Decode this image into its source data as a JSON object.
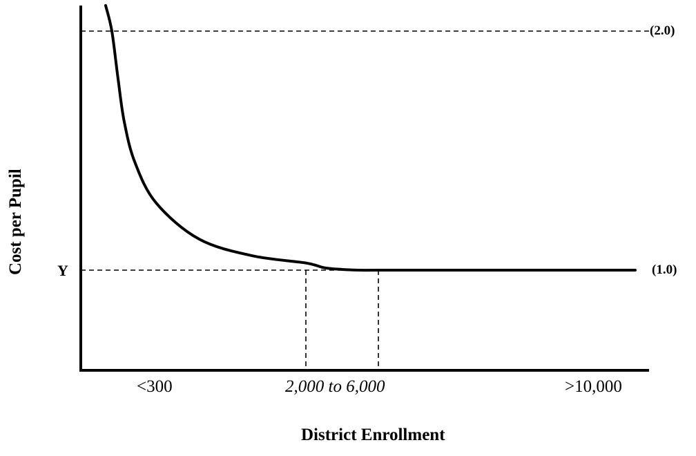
{
  "chart_data": {
    "type": "line",
    "xlabel": "District Enrollment",
    "ylabel": "Cost per Pupil",
    "x_tick_labels": [
      "<300",
      "2,000 to 6,000",
      ">10,000"
    ],
    "y_marker_label": "Y",
    "reference_lines": [
      {
        "label": "(2.0)",
        "value": 2.0
      },
      {
        "label": "(1.0)",
        "value": 1.0
      }
    ],
    "optimal_range": {
      "from": 2000,
      "to": 6000
    },
    "series": [
      {
        "x": [
          150,
          200,
          250,
          300,
          400,
          600,
          1000,
          1500,
          2000,
          3000,
          4000,
          5000,
          6000,
          8000,
          10000,
          12000
        ],
        "y": [
          2.3,
          2.0,
          1.8,
          1.62,
          1.45,
          1.28,
          1.13,
          1.06,
          1.03,
          1.01,
          1.003,
          1.0,
          1.0,
          1.0,
          1.0,
          1.0
        ]
      }
    ],
    "grid": false,
    "legend": "none"
  }
}
